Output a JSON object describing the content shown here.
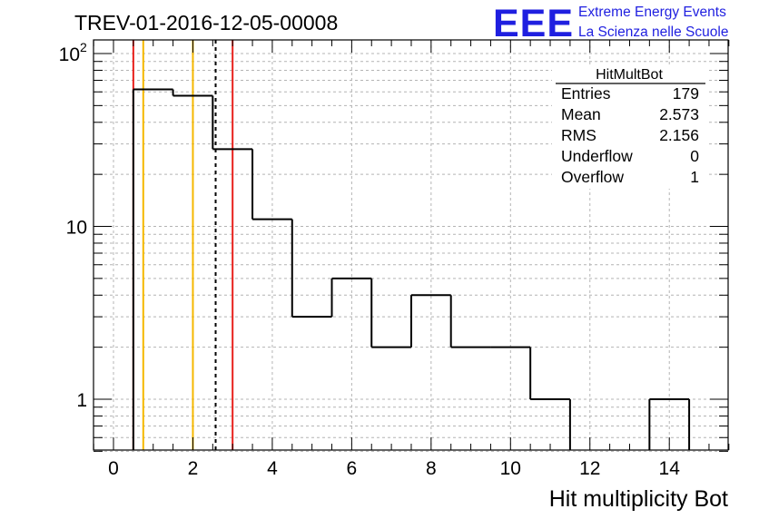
{
  "header": {
    "run_title": "TREV-01-2016-12-05-00008",
    "logo_text": "EEE",
    "logo_line1": "Extreme Energy Events",
    "logo_line2": "La Scienza nelle Scuole"
  },
  "stats_box": {
    "name": "HitMultBot",
    "rows": [
      {
        "label": "Entries",
        "value": "179"
      },
      {
        "label": "Mean",
        "value": "2.573"
      },
      {
        "label": "RMS",
        "value": "2.156"
      },
      {
        "label": "Underflow",
        "value": "0"
      },
      {
        "label": "Overflow",
        "value": "1"
      }
    ]
  },
  "colors": {
    "histogram": "#000000",
    "red_lines": "#e8201b",
    "orange_lines": "#f5b800",
    "mean_line": "#000000",
    "grid": "#b4b4b4",
    "logo": "#1f1fe0"
  },
  "chart_data": {
    "type": "histogram",
    "title": "",
    "xlabel": "Hit multiplicity Bot",
    "ylabel": "",
    "xlim": [
      -0.5,
      15.5
    ],
    "ylim": [
      0.5,
      120
    ],
    "yscale": "log",
    "grid": true,
    "x_ticks": [
      0,
      2,
      4,
      6,
      8,
      10,
      12,
      14
    ],
    "y_ticks": [
      {
        "value": 1,
        "label": "1"
      },
      {
        "value": 10,
        "label": "10"
      },
      {
        "value": 100,
        "label": "10",
        "exponent": "2"
      }
    ],
    "bins": [
      {
        "low": 0.5,
        "high": 1.5,
        "count": 62
      },
      {
        "low": 1.5,
        "high": 2.5,
        "count": 57
      },
      {
        "low": 2.5,
        "high": 3.5,
        "count": 28
      },
      {
        "low": 3.5,
        "high": 4.5,
        "count": 11
      },
      {
        "low": 4.5,
        "high": 5.5,
        "count": 3
      },
      {
        "low": 5.5,
        "high": 6.5,
        "count": 5
      },
      {
        "low": 6.5,
        "high": 7.5,
        "count": 2
      },
      {
        "low": 7.5,
        "high": 8.5,
        "count": 4
      },
      {
        "low": 8.5,
        "high": 9.5,
        "count": 2
      },
      {
        "low": 9.5,
        "high": 10.5,
        "count": 2
      },
      {
        "low": 10.5,
        "high": 11.5,
        "count": 1
      },
      {
        "low": 11.5,
        "high": 12.5,
        "count": 0
      },
      {
        "low": 12.5,
        "high": 13.5,
        "count": 0
      },
      {
        "low": 13.5,
        "high": 14.5,
        "count": 1
      },
      {
        "low": 14.5,
        "high": 15.5,
        "count": 0
      }
    ],
    "vertical_lines": [
      {
        "x": 0.5,
        "color": "red",
        "style": "solid"
      },
      {
        "x": 0.75,
        "color": "orange",
        "style": "solid"
      },
      {
        "x": 2.0,
        "color": "orange",
        "style": "solid"
      },
      {
        "x": 2.573,
        "color": "black",
        "style": "dashed"
      },
      {
        "x": 3.0,
        "color": "red",
        "style": "solid"
      }
    ]
  }
}
